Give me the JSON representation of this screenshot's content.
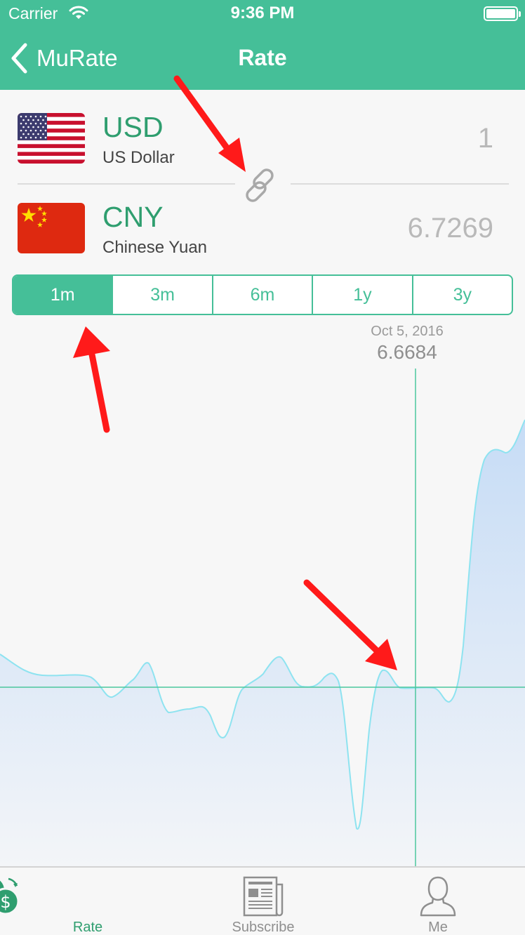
{
  "status_bar": {
    "carrier": "Carrier",
    "time": "9:36 PM"
  },
  "nav": {
    "back_label": "MuRate",
    "title": "Rate"
  },
  "base_currency": {
    "code": "USD",
    "name": "US Dollar",
    "amount": "1"
  },
  "quote_currency": {
    "code": "CNY",
    "name": "Chinese Yuan",
    "amount": "6.7269"
  },
  "periods": [
    {
      "label": "1m",
      "selected": true
    },
    {
      "label": "3m",
      "selected": false
    },
    {
      "label": "6m",
      "selected": false
    },
    {
      "label": "1y",
      "selected": false
    },
    {
      "label": "3y",
      "selected": false
    }
  ],
  "chart": {
    "selected_date": "Oct 5, 2016",
    "selected_value": "6.6684",
    "colors": {
      "line": "#8ee3f0",
      "fill_top": "#c6dcf6",
      "fill_bottom": "#f3f5f8",
      "crosshair": "#4cc79d"
    }
  },
  "tabs": [
    {
      "label": "Rate",
      "icon": "currency-exchange-icon",
      "active": true
    },
    {
      "label": "Subscribe",
      "icon": "newspaper-icon",
      "active": false
    },
    {
      "label": "Me",
      "icon": "person-icon",
      "active": false
    }
  ],
  "colors": {
    "brand": "#45bf98",
    "brand_dark": "#2f9e6f",
    "annotation": "#ff1a1a"
  }
}
